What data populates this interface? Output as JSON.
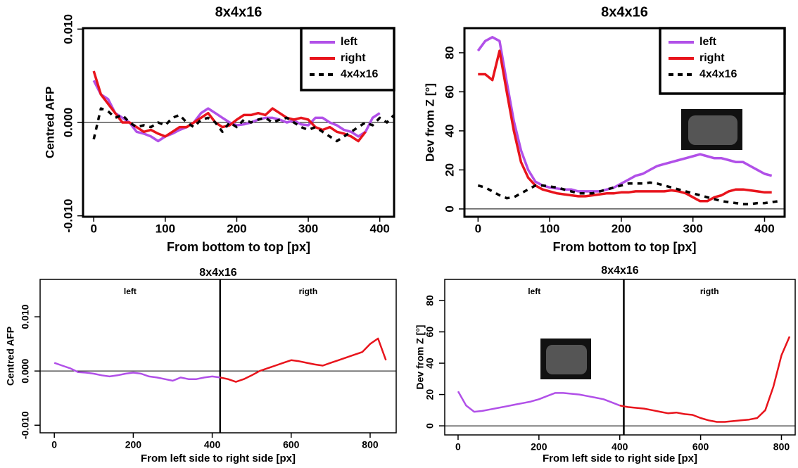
{
  "chart_data": [
    {
      "type": "line",
      "title": "8x4x16",
      "x_label": "From bottom to top [px]",
      "y_label": "Centred AFP",
      "x": [
        0,
        10,
        20,
        30,
        40,
        50,
        60,
        70,
        80,
        90,
        100,
        110,
        120,
        130,
        140,
        150,
        160,
        170,
        180,
        190,
        200,
        210,
        220,
        230,
        240,
        250,
        260,
        270,
        280,
        290,
        300,
        310,
        320,
        330,
        340,
        350,
        360,
        370,
        380,
        390,
        400,
        410,
        420
      ],
      "series": [
        {
          "name": "left",
          "color": "#b150e8",
          "values": [
            0.0045,
            0.003,
            0.0025,
            0.001,
            0.0005,
            0,
            -0.001,
            -0.0012,
            -0.0015,
            -0.002,
            -0.0015,
            -0.0012,
            -0.0008,
            -0.0005,
            0,
            0.001,
            0.0015,
            0.001,
            0.0005,
            0,
            -0.0003,
            -0.0002,
            0,
            0.0003,
            0.0005,
            0.0005,
            0.0003,
            0,
            0.0002,
            -0.0002,
            -0.0003,
            0.0005,
            0.0005,
            0,
            -0.0003,
            -0.0008,
            -0.001,
            -0.0015,
            -0.001,
            0.0005,
            0.001,
            null,
            null
          ]
        },
        {
          "name": "right",
          "color": "#e8141c",
          "values": [
            0.0055,
            0.003,
            0.002,
            0.001,
            0,
            0,
            -0.0005,
            -0.001,
            -0.0008,
            -0.0012,
            -0.0015,
            -0.001,
            -0.0005,
            -0.0005,
            0,
            0.0005,
            0.001,
            0,
            -0.0005,
            -0.0003,
            0.0003,
            0.0008,
            0.0008,
            0.001,
            0.0008,
            0.0015,
            0.001,
            0.0005,
            0.0003,
            0.0005,
            0.0003,
            -0.0005,
            -0.0008,
            -0.0005,
            -0.001,
            -0.0012,
            -0.0015,
            -0.002,
            -0.001,
            null,
            null,
            null,
            null
          ]
        },
        {
          "name": "4x4x16",
          "color": "#000000",
          "dashed": true,
          "values": [
            -0.0018,
            0.0015,
            0.0012,
            0.0005,
            0.0008,
            0,
            -0.0005,
            -0.0003,
            -0.0005,
            0,
            -0.0003,
            0.0005,
            0.0008,
            0,
            -0.0005,
            0.0003,
            0.0005,
            0,
            -0.001,
            0,
            -0.0005,
            0.0003,
            0,
            0.0003,
            0.0005,
            0,
            0.0003,
            0.0005,
            0,
            -0.0005,
            -0.0008,
            -0.0005,
            -0.001,
            -0.0015,
            -0.002,
            -0.0015,
            -0.001,
            -0.0005,
            0,
            -0.0003,
            0.0005,
            0,
            0.0008
          ]
        }
      ],
      "xlim": [
        -15,
        420
      ],
      "ylim": [
        -0.0101,
        0.0101
      ],
      "xticks": [
        0,
        100,
        200,
        300,
        400
      ],
      "yticks": [
        {
          "value": -0.01,
          "label": "-0.010"
        },
        {
          "value": 0,
          "label": "0.000"
        },
        {
          "value": 0.01,
          "label": "0.010"
        }
      ],
      "hline": 0,
      "legend": "top-right"
    },
    {
      "type": "line",
      "title": "8x4x16",
      "x_label": "From bottom to top [px]",
      "y_label": "Dev from Z [°]",
      "x": [
        0,
        10,
        20,
        30,
        40,
        50,
        60,
        70,
        80,
        90,
        100,
        110,
        120,
        130,
        140,
        150,
        160,
        170,
        180,
        190,
        200,
        210,
        220,
        230,
        240,
        250,
        260,
        270,
        280,
        290,
        300,
        310,
        320,
        330,
        340,
        350,
        360,
        370,
        380,
        390,
        400,
        410,
        420
      ],
      "series": [
        {
          "name": "left",
          "color": "#b150e8",
          "values": [
            81,
            86,
            88,
            86,
            65,
            45,
            30,
            20,
            14,
            12,
            11,
            10.5,
            10,
            10,
            9,
            9,
            9,
            9,
            10,
            11,
            13,
            15,
            17,
            18,
            20,
            22,
            23,
            24,
            25,
            26,
            27,
            28,
            27,
            26,
            26,
            25,
            24,
            24,
            22,
            20,
            18,
            17,
            null
          ]
        },
        {
          "name": "right",
          "color": "#e8141c",
          "values": [
            69,
            69,
            66,
            81,
            60,
            40,
            24,
            16,
            12,
            10,
            9,
            8,
            7.5,
            7,
            6.5,
            6.5,
            7,
            7.5,
            8,
            8,
            8.5,
            8.5,
            9,
            9,
            9,
            9,
            9,
            9.5,
            9,
            8,
            6,
            4,
            4,
            6,
            7,
            9,
            10,
            10,
            9.5,
            9,
            8.5,
            8.5,
            null
          ]
        },
        {
          "name": "4x4x16",
          "color": "#000000",
          "dashed": true,
          "values": [
            12,
            11,
            9,
            7,
            5.5,
            6,
            8,
            10,
            12,
            12,
            11.5,
            11,
            10,
            9,
            8,
            8,
            8,
            9,
            10,
            11,
            12,
            13,
            13,
            13,
            13.5,
            13,
            12,
            11,
            10,
            9,
            8,
            7,
            6,
            5,
            4,
            3.5,
            3,
            2.5,
            2.5,
            3,
            3,
            3.5,
            4
          ]
        }
      ],
      "xlim": [
        -19,
        428
      ],
      "ylim": [
        -4,
        92.6
      ],
      "xticks": [
        0,
        100,
        200,
        300,
        400
      ],
      "yticks": [
        0,
        20,
        40,
        60,
        80
      ],
      "hline": 0,
      "legend": "top-right"
    },
    {
      "type": "line",
      "title": "8x4x16",
      "x_label": "From left side to right side [px]",
      "y_label": "Centred AFP",
      "x": [
        0,
        20,
        40,
        60,
        80,
        100,
        120,
        140,
        160,
        180,
        200,
        220,
        240,
        260,
        280,
        300,
        320,
        340,
        360,
        380,
        400,
        420,
        440,
        460,
        480,
        500,
        520,
        540,
        560,
        580,
        600,
        620,
        640,
        660,
        680,
        700,
        720,
        740,
        760,
        780,
        800,
        820,
        840
      ],
      "series": [
        {
          "color": "#b150e8",
          "values": [
            0.0015,
            0.001,
            0.0005,
            -0.0002,
            -0.0003,
            -0.0005,
            -0.0008,
            -0.001,
            -0.0008,
            -0.0005,
            -0.0003,
            -0.0005,
            -0.001,
            -0.0012,
            -0.0015,
            -0.0018,
            -0.0012,
            -0.0015,
            -0.0015,
            -0.0012,
            -0.001,
            -0.0012,
            null,
            null,
            null,
            null,
            null,
            null,
            null,
            null,
            null,
            null,
            null,
            null,
            null,
            null,
            null,
            null,
            null,
            null,
            null,
            null,
            null
          ]
        },
        {
          "color": "#e8141c",
          "values": [
            null,
            null,
            null,
            null,
            null,
            null,
            null,
            null,
            null,
            null,
            null,
            null,
            null,
            null,
            null,
            null,
            null,
            null,
            null,
            null,
            null,
            -0.0012,
            -0.0015,
            -0.002,
            -0.0015,
            -0.0008,
            0,
            0.0005,
            0.001,
            0.0015,
            0.002,
            0.0018,
            0.0015,
            0.0012,
            0.001,
            0.0015,
            0.002,
            0.0025,
            0.003,
            0.0035,
            0.005,
            0.006,
            0.002
          ]
        }
      ],
      "xlim": [
        -36,
        866
      ],
      "ylim": [
        -0.0114,
        0.0169
      ],
      "xticks": [
        0,
        200,
        400,
        600,
        800
      ],
      "yticks": [
        {
          "value": -0.01,
          "label": "-0.010"
        },
        {
          "value": 0,
          "label": "0.000"
        },
        {
          "value": 0.01,
          "label": "0.010"
        }
      ],
      "hline": 0,
      "divider": 420,
      "region_labels": [
        "left",
        "rigth"
      ]
    },
    {
      "type": "line",
      "title": "8x4x16",
      "x_label": "From left side to right side [px]",
      "y_label": "Dev from Z [°]",
      "x": [
        0,
        20,
        40,
        60,
        80,
        100,
        120,
        140,
        160,
        180,
        200,
        220,
        240,
        260,
        280,
        300,
        320,
        340,
        360,
        380,
        400,
        420,
        440,
        460,
        480,
        500,
        520,
        540,
        560,
        580,
        600,
        620,
        640,
        660,
        680,
        700,
        720,
        740,
        760,
        780,
        800,
        820
      ],
      "series": [
        {
          "color": "#b150e8",
          "values": [
            22,
            13,
            9,
            9.5,
            10.5,
            11.5,
            12.5,
            13.5,
            14.5,
            15.5,
            17,
            19,
            21,
            21,
            20.5,
            20,
            19,
            18,
            17,
            15,
            13,
            null,
            null,
            null,
            null,
            null,
            null,
            null,
            null,
            null,
            null,
            null,
            null,
            null,
            null,
            null,
            null,
            null,
            null,
            null,
            null,
            null
          ]
        },
        {
          "color": "#e8141c",
          "values": [
            null,
            null,
            null,
            null,
            null,
            null,
            null,
            null,
            null,
            null,
            null,
            null,
            null,
            null,
            null,
            null,
            null,
            null,
            null,
            null,
            13,
            12,
            11.5,
            11,
            10,
            9,
            8,
            8.5,
            7.5,
            7,
            5,
            3.5,
            2.5,
            2.5,
            3,
            3.5,
            4,
            5,
            10,
            25,
            45,
            57
          ]
        }
      ],
      "xlim": [
        -33,
        834
      ],
      "ylim": [
        -5.8,
        93.5
      ],
      "xticks": [
        0,
        200,
        400,
        600,
        800
      ],
      "yticks": [
        0,
        20,
        40,
        60,
        80
      ],
      "hline": 0,
      "divider": 410,
      "region_labels": [
        "left",
        "rigth"
      ]
    }
  ]
}
